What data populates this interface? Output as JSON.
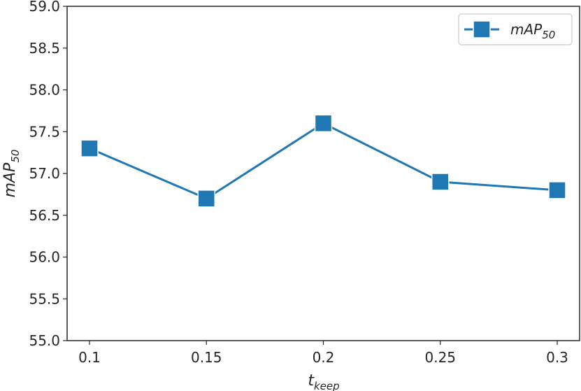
{
  "chart_data": {
    "type": "line",
    "title": "",
    "x": [
      "0.1",
      "0.15",
      "0.2",
      "0.25",
      "0.3"
    ],
    "series": [
      {
        "name": "mAP50",
        "values": [
          57.3,
          56.7,
          57.6,
          56.9,
          56.8
        ],
        "color": "#1f77b4",
        "marker": "square"
      }
    ],
    "xlabel": {
      "main": "t",
      "sub": "keep"
    },
    "ylabel": {
      "main": "mAP",
      "sub": "50"
    },
    "legend": {
      "main": "mAP",
      "sub": "50",
      "position": "top-right"
    },
    "ylim": [
      55.0,
      59.0
    ],
    "yticks": [
      "55.0",
      "55.5",
      "56.0",
      "56.5",
      "57.0",
      "57.5",
      "58.0",
      "58.5",
      "59.0"
    ],
    "grid": false
  }
}
